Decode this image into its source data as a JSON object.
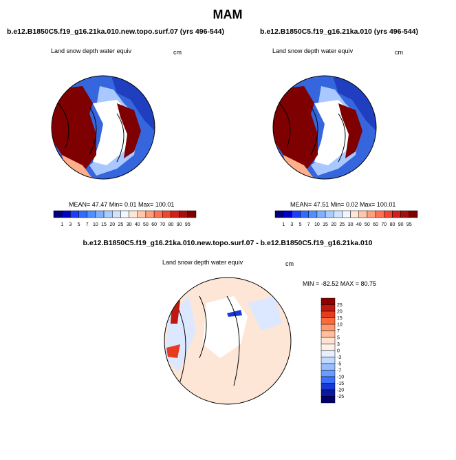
{
  "title": "MAM",
  "panels": [
    {
      "title": "b.e12.B1850C5.f19_g16.21ka.010.new.topo.surf.07 (yrs 496-544)",
      "variable": "Land snow depth water equiv",
      "units": "cm",
      "stats": "MEAN=  47.47   Min=   0.01   Max= 100.01",
      "colorbar": {
        "levels": [
          1,
          3,
          5,
          7,
          10,
          15,
          20,
          25,
          30,
          40,
          50,
          60,
          70,
          80,
          90,
          95
        ],
        "colors": [
          "#00007f",
          "#0000c8",
          "#1e3cff",
          "#2f6bff",
          "#4f8fff",
          "#7fb0ff",
          "#a8ccff",
          "#cfe3ff",
          "#f2f7ff",
          "#ffe6d5",
          "#ffc6a8",
          "#ff9e7a",
          "#ff7052",
          "#f0452e",
          "#d2201a",
          "#a50f0f",
          "#7f0000"
        ]
      }
    },
    {
      "title": "b.e12.B1850C5.f19_g16.21ka.010 (yrs 496-544)",
      "variable": "Land snow depth water equiv",
      "units": "cm",
      "stats": "MEAN=  47.51   Min=   0.02   Max= 100.01",
      "colorbar": {
        "levels": [
          1,
          3,
          5,
          7,
          10,
          15,
          20,
          25,
          30,
          40,
          50,
          60,
          70,
          80,
          90,
          95
        ],
        "colors": [
          "#00007f",
          "#0000c8",
          "#1e3cff",
          "#2f6bff",
          "#4f8fff",
          "#7fb0ff",
          "#a8ccff",
          "#cfe3ff",
          "#f2f7ff",
          "#ffe6d5",
          "#ffc6a8",
          "#ff9e7a",
          "#ff7052",
          "#f0452e",
          "#d2201a",
          "#a50f0f",
          "#7f0000"
        ]
      }
    },
    {
      "title": "b.e12.B1850C5.f19_g16.21ka.010.new.topo.surf.07 - b.e12.B1850C5.f19_g16.21ka.010",
      "variable": "Land snow depth water equiv",
      "units": "cm",
      "stats": "MIN = -82.52 MAX =  80.75",
      "colorbar": {
        "levels": [
          25,
          20,
          15,
          10,
          7,
          5,
          3,
          0,
          -3,
          -5,
          -7,
          -10,
          -15,
          -20,
          -25
        ],
        "colors": [
          "#8b0000",
          "#c0180f",
          "#e83a1f",
          "#ff6a3d",
          "#ff9a70",
          "#ffbf9c",
          "#ffe2cf",
          "#fdf2ea",
          "#e6f0ff",
          "#c2d9ff",
          "#97bdff",
          "#6a9cff",
          "#3c6eff",
          "#1638d8",
          "#0a1aa0",
          "#000070"
        ]
      }
    }
  ]
}
